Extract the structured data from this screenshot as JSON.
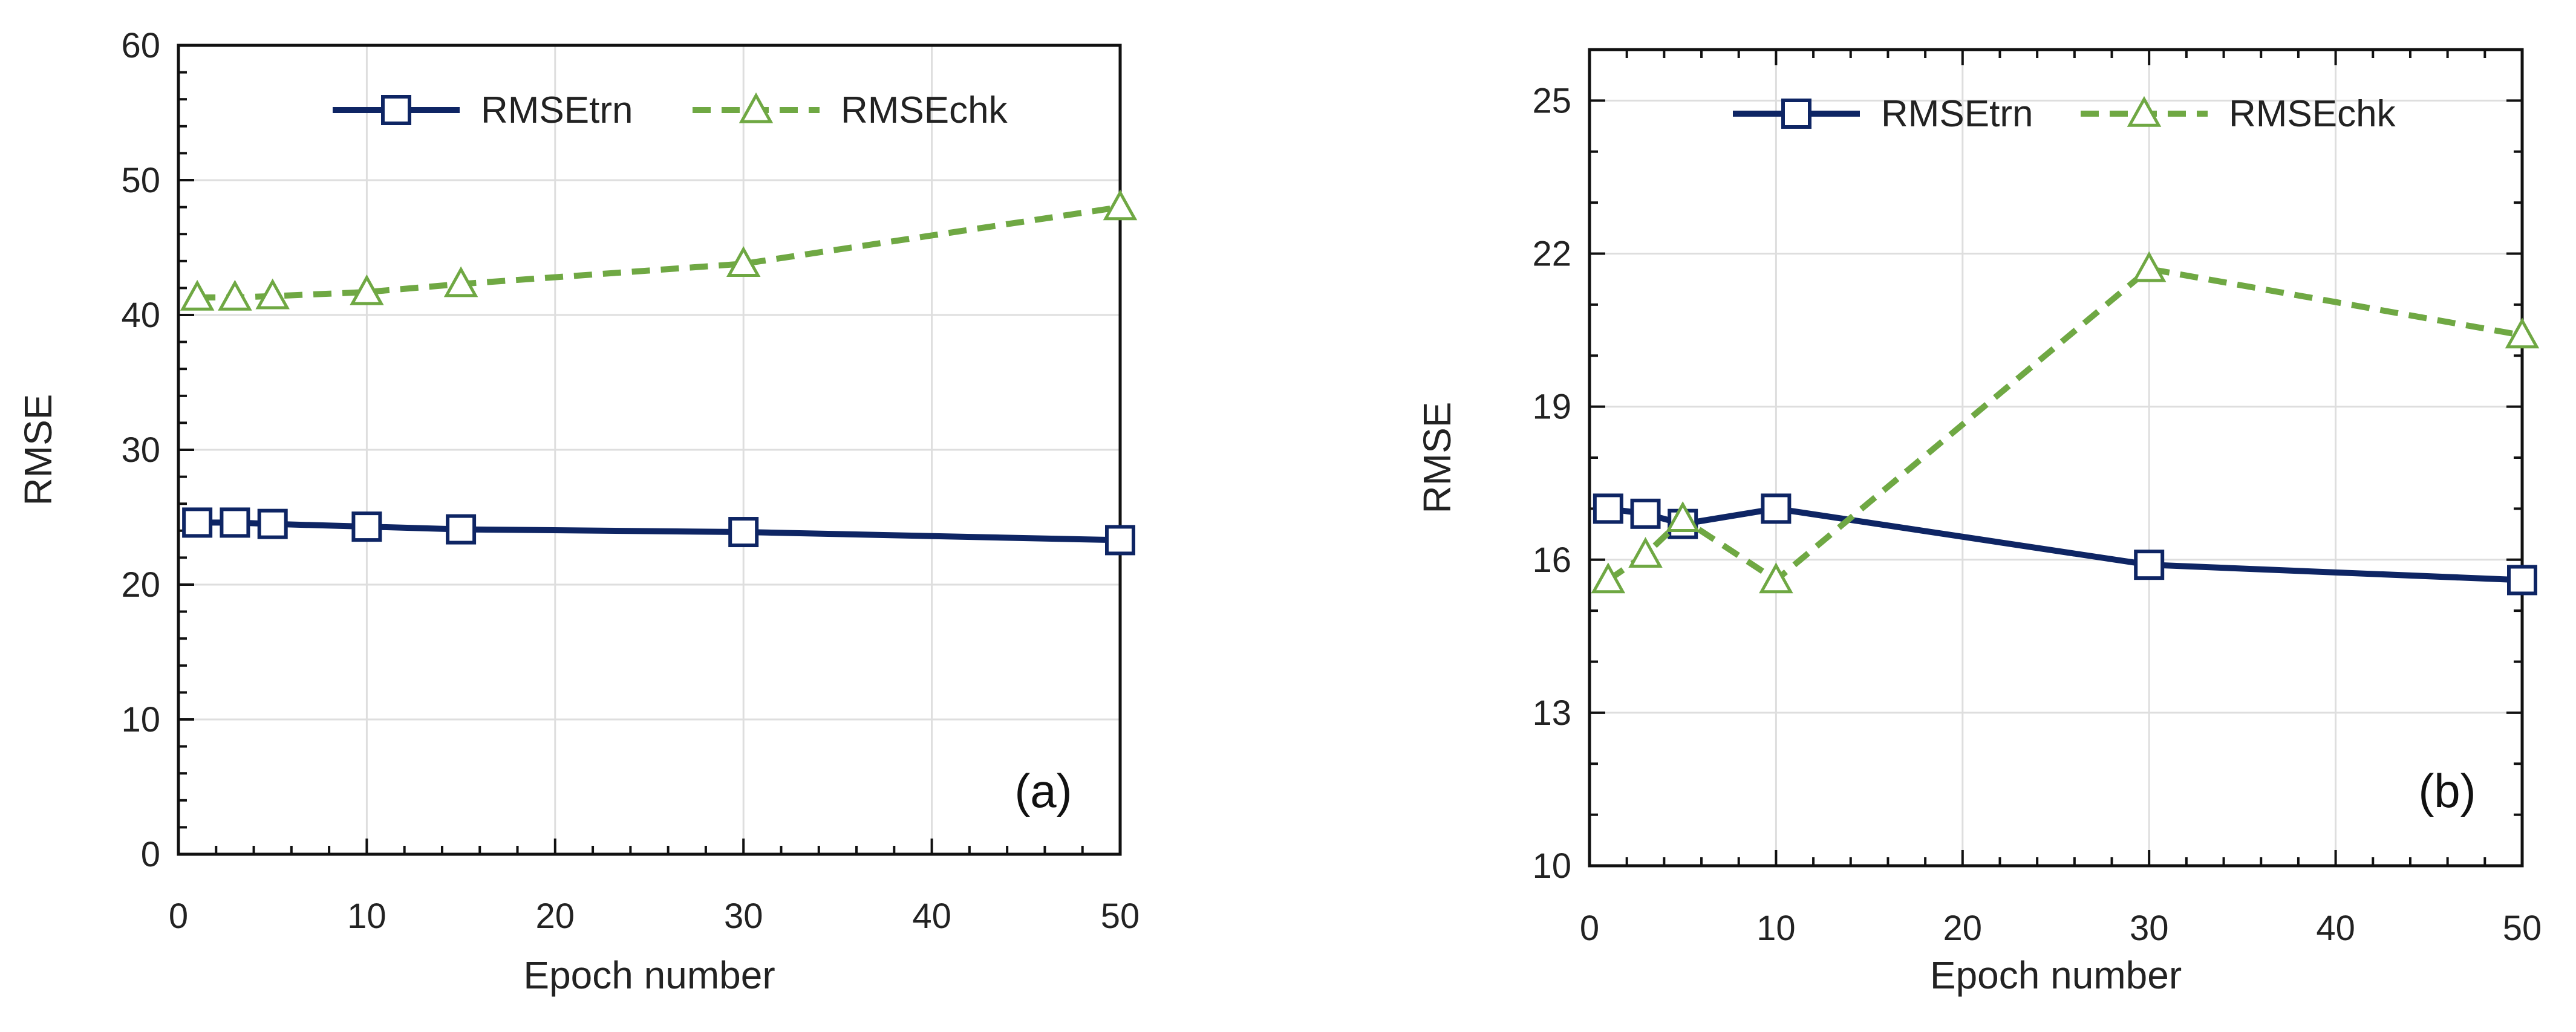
{
  "colors": {
    "trn": "#0e2564",
    "chk": "#6fa843",
    "grid": "#dedede",
    "axis": "#111111"
  },
  "chart_data": [
    {
      "type": "line",
      "panel": "a",
      "panel_label": "(a)",
      "xlabel": "Epoch number",
      "ylabel": "RMSE",
      "xlim": [
        0,
        50
      ],
      "ylim": [
        0,
        60
      ],
      "xticks": [
        0,
        10,
        20,
        30,
        40,
        50
      ],
      "xtick_labels": [
        "0",
        "10",
        "20",
        "30",
        "40",
        "50"
      ],
      "yticks": [
        0,
        10,
        20,
        30,
        40,
        50,
        60
      ],
      "ytick_labels": [
        "0",
        "10",
        "20",
        "30",
        "40",
        "50",
        "60"
      ],
      "x": [
        1,
        3,
        5,
        10,
        15,
        30,
        50
      ],
      "series": [
        {
          "name": "RMSEtrn",
          "values": [
            24.6,
            24.6,
            24.5,
            24.3,
            24.1,
            23.9,
            23.3
          ]
        },
        {
          "name": "RMSEchk",
          "values": [
            41.3,
            41.3,
            41.4,
            41.7,
            42.3,
            43.8,
            48.0
          ]
        }
      ]
    },
    {
      "type": "line",
      "panel": "b",
      "panel_label": "(b)",
      "xlabel": "Epoch number",
      "ylabel": "RMSE",
      "xlim": [
        0,
        50
      ],
      "ylim": [
        10,
        26
      ],
      "xticks": [
        0,
        10,
        20,
        30,
        40,
        50
      ],
      "xtick_labels": [
        "0",
        "10",
        "20",
        "30",
        "40",
        "50"
      ],
      "yticks": [
        10,
        13,
        16,
        19,
        22,
        25
      ],
      "ytick_labels": [
        "10",
        "13",
        "16",
        "19",
        "22",
        "25"
      ],
      "x": [
        1,
        3,
        5,
        10,
        30,
        50
      ],
      "series": [
        {
          "name": "RMSEtrn",
          "values": [
            17.0,
            16.9,
            16.7,
            17.0,
            15.9,
            15.6
          ]
        },
        {
          "name": "RMSEchk",
          "values": [
            15.6,
            16.1,
            16.8,
            15.6,
            21.7,
            20.4
          ]
        }
      ]
    }
  ]
}
